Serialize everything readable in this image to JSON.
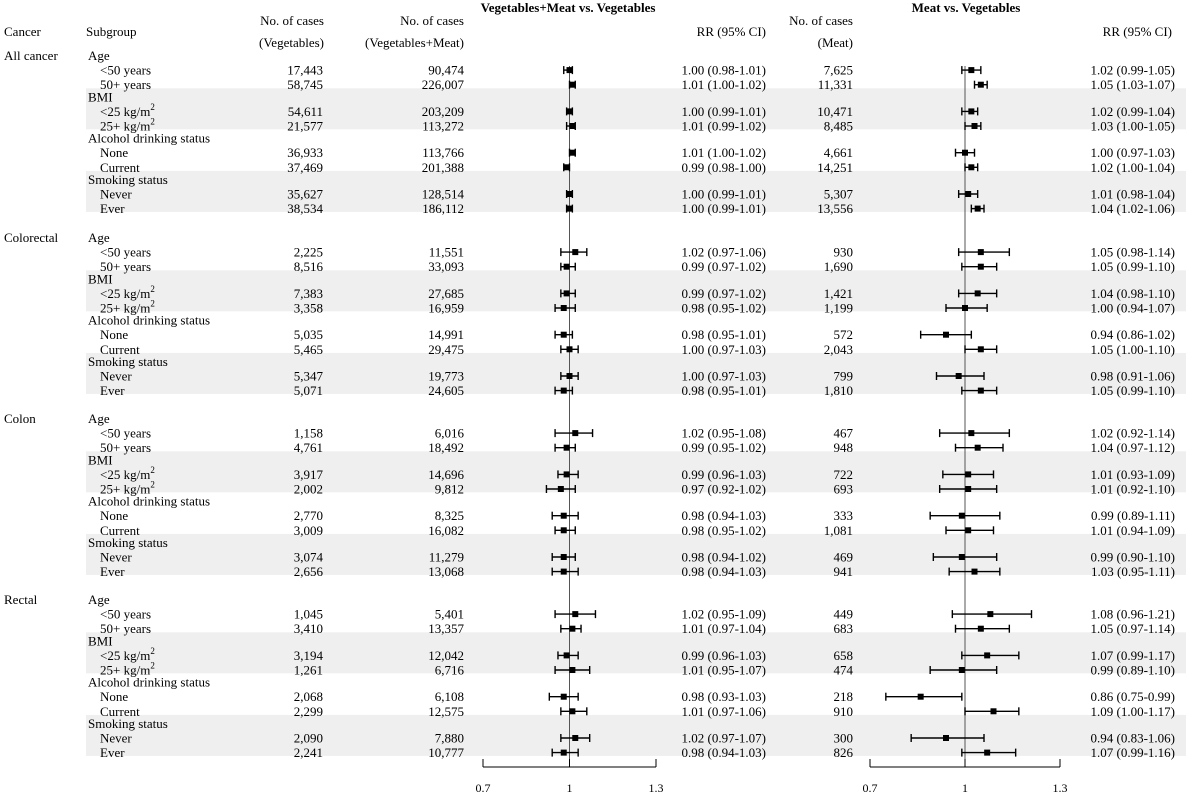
{
  "header": {
    "cancer": "Cancer",
    "subgroup": "Subgroup",
    "cases_veg_1": "No. of cases",
    "cases_veg_2": "(Vegetables)",
    "cases_vm_1": "No. of cases",
    "cases_vm_2": "(Vegetables+Meat)",
    "panel1_title": "Vegetables+Meat vs. Vegetables",
    "rr1": "RR (95% CI)",
    "cases_meat_1": "No. of cases",
    "cases_meat_2": "(Meat)",
    "panel2_title": "Meat vs. Vegetables",
    "rr2": "RR (95% CI)"
  },
  "chart_data": {
    "type": "forest",
    "panels": [
      {
        "title": "Vegetables+Meat vs. Vegetables",
        "xlim": [
          0.7,
          1.3
        ],
        "ticks": [
          "0.7",
          "1",
          "1.3"
        ],
        "reference": 1
      },
      {
        "title": "Meat vs. Vegetables",
        "xlim": [
          0.7,
          1.3
        ],
        "ticks": [
          "0.7",
          "1",
          "1.3"
        ],
        "reference": 1
      }
    ],
    "groups": [
      {
        "cancer": "All cancer",
        "subgroups": [
          {
            "name": "Age",
            "rows": [
              {
                "label": "<50 years",
                "veg": "17,443",
                "vm": "90,474",
                "rr1": [
                  1.0,
                  0.98,
                  1.01
                ],
                "rr1_text": "1.00 (0.98-1.01)",
                "meat": "7,625",
                "rr2": [
                  1.02,
                  0.99,
                  1.05
                ],
                "rr2_text": "1.02 (0.99-1.05)"
              },
              {
                "label": "50+ years",
                "veg": "58,745",
                "vm": "226,007",
                "rr1": [
                  1.01,
                  1.0,
                  1.02
                ],
                "rr1_text": "1.01 (1.00-1.02)",
                "meat": "11,331",
                "rr2": [
                  1.05,
                  1.03,
                  1.07
                ],
                "rr2_text": "1.05 (1.03-1.07)"
              }
            ]
          },
          {
            "name": "BMI",
            "rows": [
              {
                "label": "<25 kg/m",
                "sup": "2",
                "veg": "54,611",
                "vm": "203,209",
                "rr1": [
                  1.0,
                  0.99,
                  1.01
                ],
                "rr1_text": "1.00 (0.99-1.01)",
                "meat": "10,471",
                "rr2": [
                  1.02,
                  0.99,
                  1.04
                ],
                "rr2_text": "1.02 (0.99-1.04)"
              },
              {
                "label": "25+ kg/m",
                "sup": "2",
                "veg": "21,577",
                "vm": "113,272",
                "rr1": [
                  1.01,
                  0.99,
                  1.02
                ],
                "rr1_text": "1.01 (0.99-1.02)",
                "meat": "8,485",
                "rr2": [
                  1.03,
                  1.0,
                  1.05
                ],
                "rr2_text": "1.03 (1.00-1.05)"
              }
            ]
          },
          {
            "name": "Alcohol drinking status",
            "rows": [
              {
                "label": "None",
                "veg": "36,933",
                "vm": "113,766",
                "rr1": [
                  1.01,
                  1.0,
                  1.02
                ],
                "rr1_text": "1.01 (1.00-1.02)",
                "meat": "4,661",
                "rr2": [
                  1.0,
                  0.97,
                  1.03
                ],
                "rr2_text": "1.00 (0.97-1.03)"
              },
              {
                "label": "Current",
                "veg": "37,469",
                "vm": "201,388",
                "rr1": [
                  0.99,
                  0.98,
                  1.0
                ],
                "rr1_text": "0.99 (0.98-1.00)",
                "meat": "14,251",
                "rr2": [
                  1.02,
                  1.0,
                  1.04
                ],
                "rr2_text": "1.02 (1.00-1.04)"
              }
            ]
          },
          {
            "name": "Smoking status",
            "rows": [
              {
                "label": "Never",
                "veg": "35,627",
                "vm": "128,514",
                "rr1": [
                  1.0,
                  0.99,
                  1.01
                ],
                "rr1_text": "1.00 (0.99-1.01)",
                "meat": "5,307",
                "rr2": [
                  1.01,
                  0.98,
                  1.04
                ],
                "rr2_text": "1.01 (0.98-1.04)"
              },
              {
                "label": "Ever",
                "veg": "38,534",
                "vm": "186,112",
                "rr1": [
                  1.0,
                  0.99,
                  1.01
                ],
                "rr1_text": "1.00 (0.99-1.01)",
                "meat": "13,556",
                "rr2": [
                  1.04,
                  1.02,
                  1.06
                ],
                "rr2_text": "1.04 (1.02-1.06)"
              }
            ]
          }
        ]
      },
      {
        "cancer": "Colorectal",
        "subgroups": [
          {
            "name": "Age",
            "rows": [
              {
                "label": "<50 years",
                "veg": "2,225",
                "vm": "11,551",
                "rr1": [
                  1.02,
                  0.97,
                  1.06
                ],
                "rr1_text": "1.02 (0.97-1.06)",
                "meat": "930",
                "rr2": [
                  1.05,
                  0.98,
                  1.14
                ],
                "rr2_text": "1.05 (0.98-1.14)"
              },
              {
                "label": "50+ years",
                "veg": "8,516",
                "vm": "33,093",
                "rr1": [
                  0.99,
                  0.97,
                  1.02
                ],
                "rr1_text": "0.99 (0.97-1.02)",
                "meat": "1,690",
                "rr2": [
                  1.05,
                  0.99,
                  1.1
                ],
                "rr2_text": "1.05 (0.99-1.10)"
              }
            ]
          },
          {
            "name": "BMI",
            "rows": [
              {
                "label": "<25 kg/m",
                "sup": "2",
                "veg": "7,383",
                "vm": "27,685",
                "rr1": [
                  0.99,
                  0.97,
                  1.02
                ],
                "rr1_text": "0.99 (0.97-1.02)",
                "meat": "1,421",
                "rr2": [
                  1.04,
                  0.98,
                  1.1
                ],
                "rr2_text": "1.04 (0.98-1.10)"
              },
              {
                "label": "25+ kg/m",
                "sup": "2",
                "veg": "3,358",
                "vm": "16,959",
                "rr1": [
                  0.98,
                  0.95,
                  1.02
                ],
                "rr1_text": "0.98 (0.95-1.02)",
                "meat": "1,199",
                "rr2": [
                  1.0,
                  0.94,
                  1.07
                ],
                "rr2_text": "1.00 (0.94-1.07)"
              }
            ]
          },
          {
            "name": "Alcohol drinking status",
            "rows": [
              {
                "label": "None",
                "veg": "5,035",
                "vm": "14,991",
                "rr1": [
                  0.98,
                  0.95,
                  1.01
                ],
                "rr1_text": "0.98 (0.95-1.01)",
                "meat": "572",
                "rr2": [
                  0.94,
                  0.86,
                  1.02
                ],
                "rr2_text": "0.94 (0.86-1.02)"
              },
              {
                "label": "Current",
                "veg": "5,465",
                "vm": "29,475",
                "rr1": [
                  1.0,
                  0.97,
                  1.03
                ],
                "rr1_text": "1.00 (0.97-1.03)",
                "meat": "2,043",
                "rr2": [
                  1.05,
                  1.0,
                  1.1
                ],
                "rr2_text": "1.05 (1.00-1.10)"
              }
            ]
          },
          {
            "name": "Smoking status",
            "rows": [
              {
                "label": "Never",
                "veg": "5,347",
                "vm": "19,773",
                "rr1": [
                  1.0,
                  0.97,
                  1.03
                ],
                "rr1_text": "1.00 (0.97-1.03)",
                "meat": "799",
                "rr2": [
                  0.98,
                  0.91,
                  1.06
                ],
                "rr2_text": "0.98 (0.91-1.06)"
              },
              {
                "label": "Ever",
                "veg": "5,071",
                "vm": "24,605",
                "rr1": [
                  0.98,
                  0.95,
                  1.01
                ],
                "rr1_text": "0.98 (0.95-1.01)",
                "meat": "1,810",
                "rr2": [
                  1.05,
                  0.99,
                  1.1
                ],
                "rr2_text": "1.05 (0.99-1.10)"
              }
            ]
          }
        ]
      },
      {
        "cancer": "Colon",
        "subgroups": [
          {
            "name": "Age",
            "rows": [
              {
                "label": "<50 years",
                "veg": "1,158",
                "vm": "6,016",
                "rr1": [
                  1.02,
                  0.95,
                  1.08
                ],
                "rr1_text": "1.02 (0.95-1.08)",
                "meat": "467",
                "rr2": [
                  1.02,
                  0.92,
                  1.14
                ],
                "rr2_text": "1.02 (0.92-1.14)"
              },
              {
                "label": "50+ years",
                "veg": "4,761",
                "vm": "18,492",
                "rr1": [
                  0.99,
                  0.95,
                  1.02
                ],
                "rr1_text": "0.99 (0.95-1.02)",
                "meat": "948",
                "rr2": [
                  1.04,
                  0.97,
                  1.12
                ],
                "rr2_text": "1.04 (0.97-1.12)"
              }
            ]
          },
          {
            "name": "BMI",
            "rows": [
              {
                "label": "<25 kg/m",
                "sup": "2",
                "veg": "3,917",
                "vm": "14,696",
                "rr1": [
                  0.99,
                  0.96,
                  1.03
                ],
                "rr1_text": "0.99 (0.96-1.03)",
                "meat": "722",
                "rr2": [
                  1.01,
                  0.93,
                  1.09
                ],
                "rr2_text": "1.01 (0.93-1.09)"
              },
              {
                "label": "25+ kg/m",
                "sup": "2",
                "veg": "2,002",
                "vm": "9,812",
                "rr1": [
                  0.97,
                  0.92,
                  1.02
                ],
                "rr1_text": "0.97 (0.92-1.02)",
                "meat": "693",
                "rr2": [
                  1.01,
                  0.92,
                  1.1
                ],
                "rr2_text": "1.01 (0.92-1.10)"
              }
            ]
          },
          {
            "name": "Alcohol drinking status",
            "rows": [
              {
                "label": "None",
                "veg": "2,770",
                "vm": "8,325",
                "rr1": [
                  0.98,
                  0.94,
                  1.03
                ],
                "rr1_text": "0.98 (0.94-1.03)",
                "meat": "333",
                "rr2": [
                  0.99,
                  0.89,
                  1.11
                ],
                "rr2_text": "0.99 (0.89-1.11)"
              },
              {
                "label": "Current",
                "veg": "3,009",
                "vm": "16,082",
                "rr1": [
                  0.98,
                  0.95,
                  1.02
                ],
                "rr1_text": "0.98 (0.95-1.02)",
                "meat": "1,081",
                "rr2": [
                  1.01,
                  0.94,
                  1.09
                ],
                "rr2_text": "1.01 (0.94-1.09)"
              }
            ]
          },
          {
            "name": "Smoking status",
            "rows": [
              {
                "label": "Never",
                "veg": "3,074",
                "vm": "11,279",
                "rr1": [
                  0.98,
                  0.94,
                  1.02
                ],
                "rr1_text": "0.98 (0.94-1.02)",
                "meat": "469",
                "rr2": [
                  0.99,
                  0.9,
                  1.1
                ],
                "rr2_text": "0.99 (0.90-1.10)"
              },
              {
                "label": "Ever",
                "veg": "2,656",
                "vm": "13,068",
                "rr1": [
                  0.98,
                  0.94,
                  1.03
                ],
                "rr1_text": "0.98 (0.94-1.03)",
                "meat": "941",
                "rr2": [
                  1.03,
                  0.95,
                  1.11
                ],
                "rr2_text": "1.03 (0.95-1.11)"
              }
            ]
          }
        ]
      },
      {
        "cancer": "Rectal",
        "subgroups": [
          {
            "name": "Age",
            "rows": [
              {
                "label": "<50 years",
                "veg": "1,045",
                "vm": "5,401",
                "rr1": [
                  1.02,
                  0.95,
                  1.09
                ],
                "rr1_text": "1.02 (0.95-1.09)",
                "meat": "449",
                "rr2": [
                  1.08,
                  0.96,
                  1.21
                ],
                "rr2_text": "1.08 (0.96-1.21)"
              },
              {
                "label": "50+ years",
                "veg": "3,410",
                "vm": "13,357",
                "rr1": [
                  1.01,
                  0.97,
                  1.04
                ],
                "rr1_text": "1.01 (0.97-1.04)",
                "meat": "683",
                "rr2": [
                  1.05,
                  0.97,
                  1.14
                ],
                "rr2_text": "1.05 (0.97-1.14)"
              }
            ]
          },
          {
            "name": "BMI",
            "rows": [
              {
                "label": "<25 kg/m",
                "sup": "2",
                "veg": "3,194",
                "vm": "12,042",
                "rr1": [
                  0.99,
                  0.96,
                  1.03
                ],
                "rr1_text": "0.99 (0.96-1.03)",
                "meat": "658",
                "rr2": [
                  1.07,
                  0.99,
                  1.17
                ],
                "rr2_text": "1.07 (0.99-1.17)"
              },
              {
                "label": "25+ kg/m",
                "sup": "2",
                "veg": "1,261",
                "vm": "6,716",
                "rr1": [
                  1.01,
                  0.95,
                  1.07
                ],
                "rr1_text": "1.01 (0.95-1.07)",
                "meat": "474",
                "rr2": [
                  0.99,
                  0.89,
                  1.1
                ],
                "rr2_text": "0.99 (0.89-1.10)"
              }
            ]
          },
          {
            "name": "Alcohol drinking status",
            "rows": [
              {
                "label": "None",
                "veg": "2,068",
                "vm": "6,108",
                "rr1": [
                  0.98,
                  0.93,
                  1.03
                ],
                "rr1_text": "0.98 (0.93-1.03)",
                "meat": "218",
                "rr2": [
                  0.86,
                  0.75,
                  0.99
                ],
                "rr2_text": "0.86 (0.75-0.99)"
              },
              {
                "label": "Current",
                "veg": "2,299",
                "vm": "12,575",
                "rr1": [
                  1.01,
                  0.97,
                  1.06
                ],
                "rr1_text": "1.01 (0.97-1.06)",
                "meat": "910",
                "rr2": [
                  1.09,
                  1.0,
                  1.17
                ],
                "rr2_text": "1.09 (1.00-1.17)"
              }
            ]
          },
          {
            "name": "Smoking status",
            "rows": [
              {
                "label": "Never",
                "veg": "2,090",
                "vm": "7,880",
                "rr1": [
                  1.02,
                  0.97,
                  1.07
                ],
                "rr1_text": "1.02 (0.97-1.07)",
                "meat": "300",
                "rr2": [
                  0.94,
                  0.83,
                  1.06
                ],
                "rr2_text": "0.94 (0.83-1.06)"
              },
              {
                "label": "Ever",
                "veg": "2,241",
                "vm": "10,777",
                "rr1": [
                  0.98,
                  0.94,
                  1.03
                ],
                "rr1_text": "0.98 (0.94-1.03)",
                "meat": "826",
                "rr2": [
                  1.07,
                  0.99,
                  1.16
                ],
                "rr2_text": "1.07 (0.99-1.16)"
              }
            ]
          }
        ]
      }
    ]
  }
}
